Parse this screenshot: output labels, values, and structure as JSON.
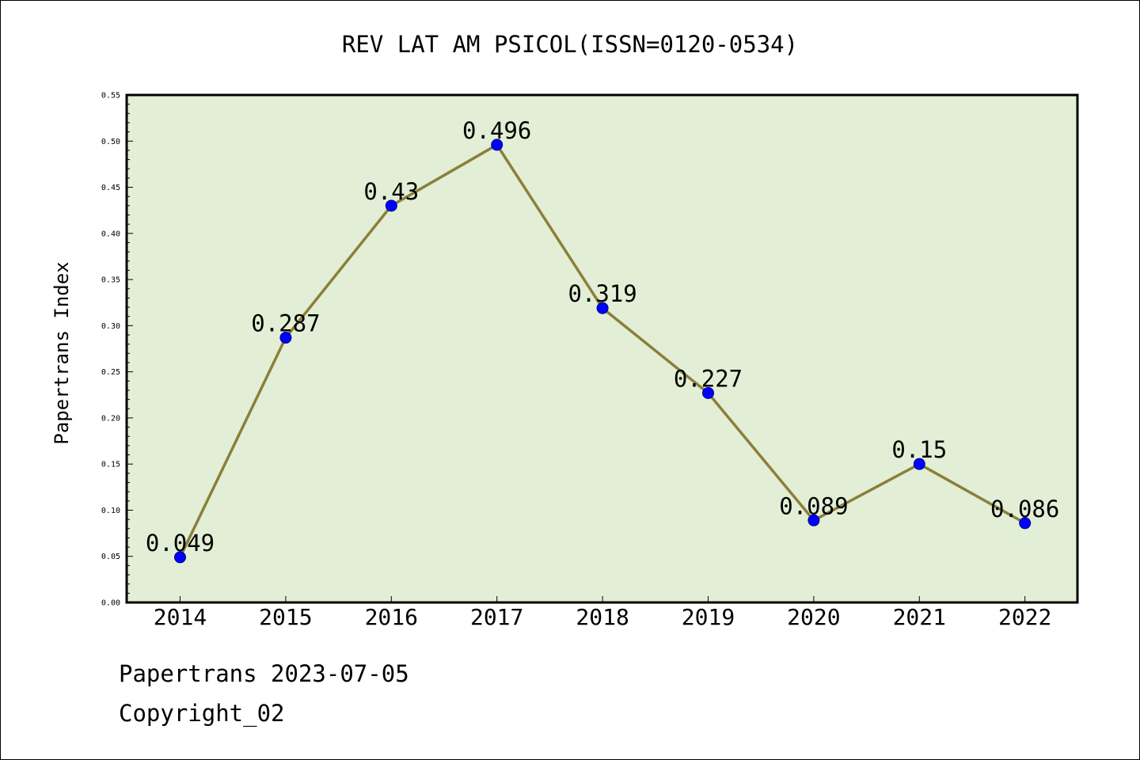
{
  "footer": {
    "date_line": "Papertrans 2023-07-05",
    "copyright_line": "Copyright_02"
  },
  "colors": {
    "plot_background": "#e2efd6",
    "line": "#8c7f3a",
    "marker": "#0000ff",
    "marker_edge": "#00008b"
  },
  "chart_data": {
    "type": "line",
    "title": "REV LAT AM PSICOL(ISSN=0120-0534)",
    "xlabel": "",
    "ylabel": "Papertrans Index",
    "categories": [
      "2014",
      "2015",
      "2016",
      "2017",
      "2018",
      "2019",
      "2020",
      "2021",
      "2022"
    ],
    "series": [
      {
        "values": [
          0.049,
          0.287,
          0.43,
          0.496,
          0.319,
          0.227,
          0.089,
          0.15,
          0.086
        ],
        "labels": [
          "0.049",
          "0.287",
          "0.43",
          "0.496",
          "0.319",
          "0.227",
          "0.089",
          "0.15",
          "0.086"
        ]
      }
    ],
    "ylim": [
      0,
      0.55
    ],
    "yticks": [
      "0.00",
      "0.05",
      "0.10",
      "0.15",
      "0.20",
      "0.25",
      "0.30",
      "0.35",
      "0.40",
      "0.45",
      "0.50",
      "0.55"
    ],
    "grid": false,
    "legend": "none"
  }
}
